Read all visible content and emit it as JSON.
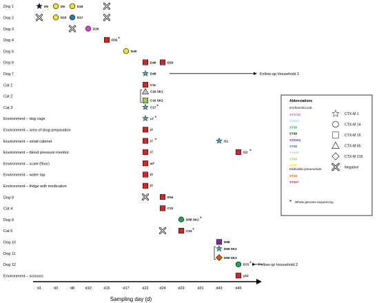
{
  "rows": [
    {
      "label": "Dog 1",
      "markers": [
        {
          "day": "d1",
          "shape": "star",
          "color": "#222222",
          "tag": "D5"
        },
        {
          "day": "d3",
          "shape": "circle",
          "color": "#f6e61a",
          "tag": "D9"
        },
        {
          "day": "d8",
          "shape": "circle",
          "color": "#f6e61a",
          "tag": "D18"
        },
        {
          "day": "d15",
          "shape": "cross",
          "color": "#ffffff",
          "tag": ""
        }
      ]
    },
    {
      "label": "Dog 2",
      "markers": [
        {
          "day": "d1",
          "shape": "cross",
          "color": "#ffffff",
          "tag": ""
        },
        {
          "day": "d3",
          "shape": "circle",
          "color": "#f6e61a",
          "tag": "D10"
        },
        {
          "day": "d8",
          "shape": "circle",
          "color": "#2e74b5",
          "tag": "D17"
        },
        {
          "day": "d15",
          "shape": "cross",
          "color": "#ffffff",
          "tag": ""
        }
      ]
    },
    {
      "label": "Dog 3",
      "markers": [
        {
          "day": "d8",
          "shape": "cross",
          "color": "#ffffff",
          "tag": ""
        },
        {
          "day": "d10",
          "shape": "circle",
          "color": "#e040e0",
          "tag": "D20"
        }
      ]
    },
    {
      "label": "Dog 4",
      "markers": [
        {
          "day": "d15",
          "shape": "square",
          "color": "#e02020",
          "tag": "D32",
          "wgs": true
        }
      ]
    },
    {
      "label": "Dog 5",
      "markers": [
        {
          "day": "d17",
          "shape": "circle",
          "color": "#f6e61a",
          "tag": "D40"
        }
      ]
    },
    {
      "label": "Dog 6",
      "markers": [
        {
          "day": "d22",
          "shape": "square",
          "color": "#e02020",
          "tag": "D46"
        },
        {
          "day": "d24",
          "shape": "square",
          "color": "#e02020",
          "tag": "D53"
        }
      ]
    },
    {
      "label": "Dog 7",
      "markers": [
        {
          "day": "d22",
          "shape": "star",
          "color": "#44b0b0",
          "tag": "D48"
        }
      ],
      "followup": "Follow-up Household 1"
    },
    {
      "label": "Cat 1",
      "markers": [
        {
          "day": "d22",
          "shape": "square",
          "color": "#e02020",
          "tag": "C11"
        }
      ]
    },
    {
      "label": "Cat 2",
      "markers": [
        {
          "day": "d22",
          "shape": "triangle",
          "color": "#c8c8c8",
          "tag": "C16 SK1",
          "sub": -1
        },
        {
          "day": "d22",
          "shape": "square",
          "color": "#92d050",
          "tag": "C16 SK2",
          "sub": 1
        }
      ]
    },
    {
      "label": "Cat 3",
      "markers": [
        {
          "day": "d22",
          "shape": "star",
          "color": "#44b0b0",
          "tag": "C17",
          "wgs": true
        }
      ]
    },
    {
      "label": "Environment – dog cage",
      "markers": [
        {
          "day": "d22",
          "shape": "star",
          "color": "#44b0b0",
          "tag": "c7",
          "wgs": true
        }
      ]
    },
    {
      "label": "Environment – area of drug preparation",
      "markers": [
        {
          "day": "d22",
          "shape": "square",
          "color": "#e02020",
          "tag": "i7"
        }
      ]
    },
    {
      "label": "Environment – small cabinet",
      "markers": [
        {
          "day": "d22",
          "shape": "square",
          "color": "#e02020",
          "tag": "i7",
          "wgs": true
        },
        {
          "day": "d43",
          "shape": "star",
          "color": "#44b0b0",
          "tag": "i11"
        }
      ]
    },
    {
      "label": "Environment – blood pressure monitor",
      "markers": [
        {
          "day": "d22",
          "shape": "square",
          "color": "#e02020",
          "tag": "i7"
        },
        {
          "day": "d45",
          "shape": "square",
          "color": "#e02020",
          "tag": "i12",
          "wgs": true
        }
      ]
    },
    {
      "label": "Environment – scale (floor)",
      "markers": [
        {
          "day": "d22",
          "shape": "square",
          "color": "#e02020",
          "tag": "w7"
        }
      ]
    },
    {
      "label": "Environment – water tap",
      "markers": [
        {
          "day": "d22",
          "shape": "square",
          "color": "#e02020",
          "tag": "f7"
        }
      ]
    },
    {
      "label": "Environment – fridge with medication",
      "markers": [
        {
          "day": "d22",
          "shape": "square",
          "color": "#e02020",
          "tag": "f7"
        }
      ]
    },
    {
      "label": "Dog 8",
      "markers": [
        {
          "day": "d22",
          "shape": "cross",
          "color": "#ffffff",
          "tag": ""
        },
        {
          "day": "d24",
          "shape": "square",
          "color": "#e02020",
          "tag": "D54"
        }
      ]
    },
    {
      "label": "Cat 4",
      "markers": [
        {
          "day": "d24",
          "shape": "square",
          "color": "#e02020",
          "tag": "C21"
        }
      ]
    },
    {
      "label": "Dog 9",
      "markers": [
        {
          "day": "d29",
          "shape": "circle",
          "color": "#1aa850",
          "tag": "D58 SK2",
          "wgs": true
        }
      ]
    },
    {
      "label": "Cat 5",
      "markers": [
        {
          "day": "d24",
          "shape": "cross",
          "color": "#ffffff",
          "tag": ""
        },
        {
          "day": "d29",
          "shape": "square",
          "color": "#e02020",
          "tag": "C23",
          "wgs": true
        }
      ]
    },
    {
      "label": "Dog 10",
      "markers": [
        {
          "day": "d43",
          "shape": "square",
          "color": "#7030a0",
          "tag": "D68"
        }
      ]
    },
    {
      "label": "Dog 11",
      "markers": [
        {
          "day": "d43",
          "shape": "star",
          "color": "#44b0b0",
          "tag": "D69 SK2",
          "sub": -1
        },
        {
          "day": "d43",
          "shape": "diamond",
          "color": "#d06010",
          "tag": "D69 SK3",
          "sub": 1
        }
      ]
    },
    {
      "label": "Dog 12",
      "markers": [
        {
          "day": "d45",
          "shape": "circle",
          "color": "#1aa850",
          "tag": "D72",
          "wgs": true
        }
      ],
      "followup": "Follow-up Household 2"
    },
    {
      "label": "Environment – scissors",
      "markers": [
        {
          "day": "d45",
          "shape": "square",
          "color": "#e02020",
          "tag": "y12"
        }
      ]
    }
  ],
  "x_axis": {
    "ticks": [
      "d1",
      "d3",
      "d8",
      "d10",
      "d15",
      "d17",
      "d22",
      "d24",
      "d29",
      "d31",
      "d43",
      "d45"
    ],
    "label": "Sampling day (d)"
  },
  "legend": {
    "title": "Abbreviations",
    "ecoli_title": "Escherichia coli:",
    "ecoli_types": [
      {
        "name": "ST1722",
        "color": "#e040e0"
      },
      {
        "name": "ST224",
        "color": "#8fd0f0"
      },
      {
        "name": "ST38",
        "color": "#1aa850"
      },
      {
        "name": "ST48",
        "color": "#222222"
      },
      {
        "name": "ST5204",
        "color": "#7030a0"
      },
      {
        "name": "ST58",
        "color": "#2e74b5"
      },
      {
        "name": "ST648",
        "color": "#c8c8c8"
      },
      {
        "name": "ST69",
        "color": "#92d050"
      },
      {
        "name": "ST88",
        "color": "#f6e61a"
      }
    ],
    "kp_title": "Klebsiella pneumoniae:",
    "kp_types": [
      {
        "name": "ST15",
        "color": "#d06010"
      },
      {
        "name": "ST307",
        "color": "#e02020"
      }
    ],
    "symbols": [
      {
        "shape": "star",
        "label": "CTX-M 1"
      },
      {
        "shape": "circle",
        "label": "CTX-M 14"
      },
      {
        "shape": "square",
        "label": "CTX-M 15"
      },
      {
        "shape": "triangle",
        "label": "CTX-M 65"
      },
      {
        "shape": "diamond",
        "label": "CTX-M 216"
      },
      {
        "shape": "cross",
        "label": "Negative"
      }
    ],
    "wgs_mark": "*",
    "wgs_label": "Whole genome sequencing"
  }
}
